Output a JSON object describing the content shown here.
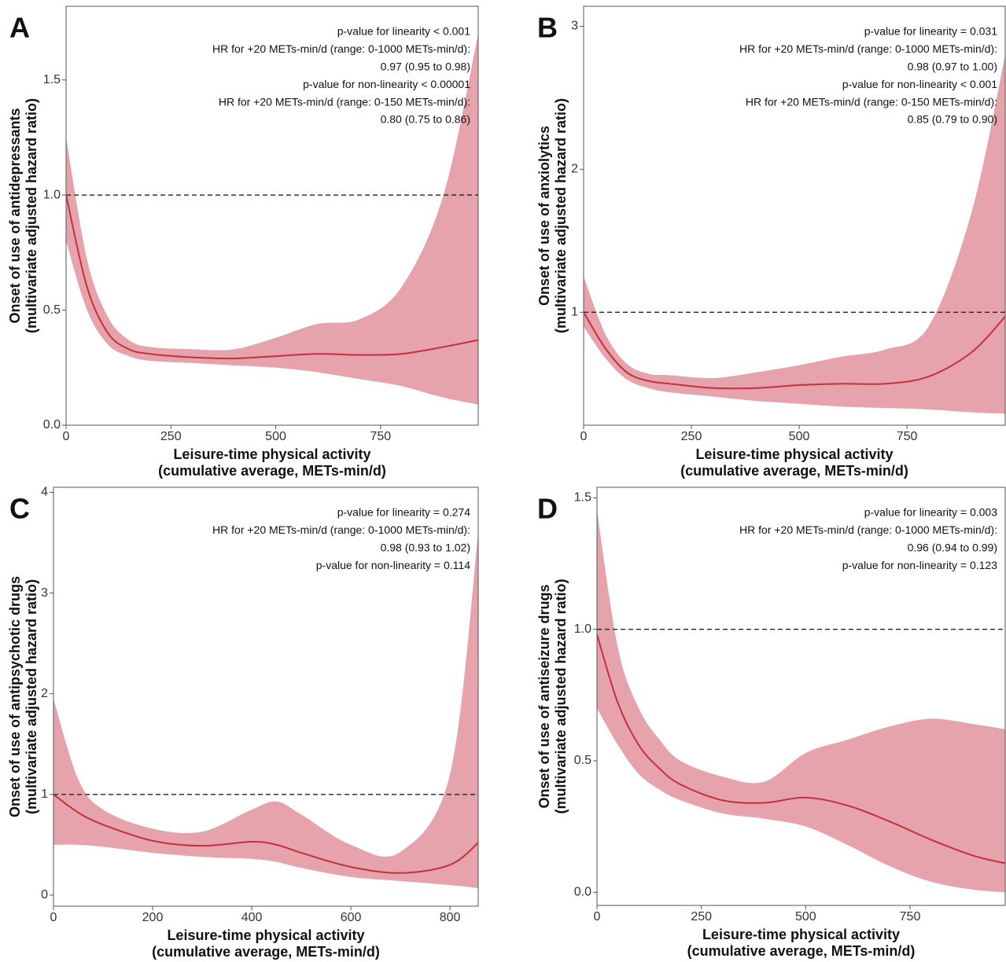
{
  "chart_data": [
    {
      "type": "line",
      "panel_label": "A",
      "annotations": [
        "p-value for linearity < 0.001",
        "HR for +20 METs-min/d (range: 0-1000 METs-min/d):",
        "0.97 (0.95 to 0.98)",
        "p-value for non-linearity < 0.00001",
        "HR for +20 METs-min/d (range: 0-150 METs-min/d):",
        "0.80 (0.75 to 0.86)"
      ],
      "ylabel": [
        "Onset of use of antidepressants",
        "(multivariate adjusted hazard ratio)"
      ],
      "xlabel": [
        "Leisure-time physical activity",
        "(cumulative average, METs-min/d)"
      ],
      "x": [
        0,
        50,
        100,
        150,
        200,
        300,
        400,
        500,
        600,
        700,
        800,
        900,
        983
      ],
      "values": [
        1.0,
        0.6,
        0.4,
        0.33,
        0.31,
        0.295,
        0.29,
        0.3,
        0.31,
        0.305,
        0.31,
        0.34,
        0.37
      ],
      "lower": [
        0.8,
        0.5,
        0.35,
        0.3,
        0.28,
        0.27,
        0.26,
        0.25,
        0.23,
        0.2,
        0.17,
        0.12,
        0.09
      ],
      "upper": [
        1.25,
        0.72,
        0.47,
        0.37,
        0.34,
        0.33,
        0.33,
        0.38,
        0.44,
        0.46,
        0.6,
        1.0,
        1.7
      ],
      "color": "#c0323c",
      "band_color": "#e6a3ab",
      "hline": 1,
      "xlim": [
        0,
        983
      ],
      "ylim": [
        0,
        1.82
      ],
      "xticks": [
        0,
        250,
        500,
        750
      ],
      "yticks": [
        {
          "value": 0,
          "label": "0.0"
        },
        0.5,
        {
          "value": 1,
          "label": "1.0"
        },
        1.5
      ]
    },
    {
      "type": "line",
      "panel_label": "B",
      "annotations": [
        "p-value for linearity = 0.031",
        "HR for +20 METs-min/d (range: 0-1000 METs-min/d):",
        "0.98 (0.97 to 1.00)",
        "p-value for non-linearity < 0.001",
        "HR for +20 METs-min/d (range: 0-150 METs-min/d):",
        "0.85 (0.79 to 0.90)"
      ],
      "ylabel": [
        "Onset of use of anxiolytics",
        "(multivariate adjusted hazard ratio)"
      ],
      "xlabel": [
        "Leisure-time physical activity",
        "(cumulative average, METs-min/d)"
      ],
      "x": [
        0,
        50,
        100,
        150,
        200,
        300,
        400,
        500,
        600,
        700,
        800,
        900,
        978
      ],
      "values": [
        1.0,
        0.75,
        0.58,
        0.52,
        0.5,
        0.47,
        0.47,
        0.49,
        0.5,
        0.5,
        0.55,
        0.72,
        0.97
      ],
      "lower": [
        0.9,
        0.68,
        0.53,
        0.47,
        0.44,
        0.41,
        0.38,
        0.36,
        0.34,
        0.33,
        0.32,
        0.3,
        0.29
      ],
      "upper": [
        1.25,
        0.85,
        0.64,
        0.57,
        0.56,
        0.54,
        0.58,
        0.63,
        0.69,
        0.74,
        0.9,
        1.7,
        2.8
      ],
      "color": "#c0323c",
      "band_color": "#e6a3ab",
      "hline": 1,
      "xlim": [
        0,
        978
      ],
      "ylim": [
        0.21,
        3.14
      ],
      "xticks": [
        0,
        250,
        500,
        750
      ],
      "yticks": [
        1,
        2,
        3
      ]
    },
    {
      "type": "line",
      "panel_label": "C",
      "annotations": [
        "p-value for linearity = 0.274",
        "HR for +20 METs-min/d (range: 0-1000 METs-min/d):",
        "0.98 (0.93 to 1.02)",
        "p-value for non-linearity = 0.114"
      ],
      "ylabel": [
        "Onset of use of antipsychotic drugs",
        "(multivariate adjusted hazard ratio)"
      ],
      "xlabel": [
        "Leisure-time physical activity",
        "(cumulative average, METs-min/d)"
      ],
      "x": [
        0,
        50,
        100,
        200,
        300,
        400,
        450,
        500,
        600,
        700,
        800,
        857
      ],
      "values": [
        1.0,
        0.82,
        0.7,
        0.54,
        0.49,
        0.53,
        0.5,
        0.42,
        0.28,
        0.22,
        0.3,
        0.52
      ],
      "lower": [
        0.5,
        0.5,
        0.48,
        0.42,
        0.38,
        0.36,
        0.33,
        0.27,
        0.18,
        0.14,
        0.1,
        0.07
      ],
      "upper": [
        1.95,
        1.15,
        0.85,
        0.66,
        0.63,
        0.85,
        0.93,
        0.8,
        0.5,
        0.43,
        1.2,
        3.6
      ],
      "color": "#c0323c",
      "band_color": "#e6a3ab",
      "hline": 1,
      "xlim": [
        0,
        857
      ],
      "ylim": [
        -0.11,
        4.05
      ],
      "xticks": [
        0,
        200,
        400,
        600,
        800
      ],
      "yticks": [
        0,
        1,
        2,
        3,
        4
      ]
    },
    {
      "type": "line",
      "panel_label": "D",
      "annotations": [
        "p-value for linearity = 0.003",
        "HR for +20 METs-min/d (range: 0-1000 METs-min/d):",
        "0.96 (0.94 to 0.99)",
        "p-value for non-linearity = 0.123"
      ],
      "ylabel": [
        "Onset of use of antiseizure drugs",
        "(multivariate adjusted hazard ratio)"
      ],
      "xlabel": [
        "Leisure-time physical activity",
        "(cumulative average, METs-min/d)"
      ],
      "x": [
        0,
        50,
        100,
        150,
        200,
        300,
        400,
        500,
        600,
        700,
        800,
        900,
        978
      ],
      "values": [
        0.98,
        0.72,
        0.56,
        0.47,
        0.41,
        0.35,
        0.34,
        0.36,
        0.33,
        0.27,
        0.2,
        0.14,
        0.11
      ],
      "lower": [
        0.7,
        0.56,
        0.45,
        0.39,
        0.35,
        0.3,
        0.28,
        0.25,
        0.18,
        0.1,
        0.04,
        0.01,
        0.0
      ],
      "upper": [
        1.45,
        0.93,
        0.7,
        0.58,
        0.5,
        0.44,
        0.42,
        0.53,
        0.58,
        0.63,
        0.66,
        0.64,
        0.62
      ],
      "color": "#c0323c",
      "band_color": "#e6a3ab",
      "hline": 1,
      "xlim": [
        0,
        978
      ],
      "ylim": [
        -0.05,
        1.54
      ],
      "xticks": [
        0,
        250,
        500,
        750
      ],
      "yticks": [
        {
          "value": 0,
          "label": "0.0"
        },
        0.5,
        {
          "value": 1,
          "label": "1.0"
        },
        1.5
      ]
    }
  ]
}
